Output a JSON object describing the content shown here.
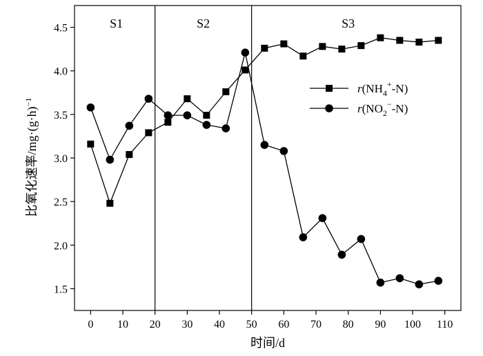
{
  "chart_data": {
    "type": "line",
    "title": "",
    "xlabel": "时间/d",
    "ylabel": "比氧化速率/mg·(g·h)",
    "ylabel_sup": "−1",
    "xlim": [
      -5,
      115
    ],
    "ylim": [
      1.25,
      4.75
    ],
    "xticks": [
      0,
      10,
      20,
      30,
      40,
      50,
      60,
      70,
      80,
      90,
      100,
      110
    ],
    "yticks": [
      1.5,
      2.0,
      2.5,
      3.0,
      3.5,
      4.0,
      4.5
    ],
    "ytick_labels": [
      "1.5",
      "2.0",
      "2.5",
      "3.0",
      "3.5",
      "4.0",
      "4.5"
    ],
    "grid": false,
    "legend_position": "right",
    "phase_boundaries": [
      20,
      50
    ],
    "phases": [
      {
        "label": "S1",
        "x": 8
      },
      {
        "label": "S2",
        "x": 35
      },
      {
        "label": "S3",
        "x": 80
      }
    ],
    "series": [
      {
        "name": "r(NH4+-N)",
        "legend_italic": "r",
        "legend_text": "(NH",
        "legend_sub": "4",
        "legend_sup": "+",
        "legend_tail": "-N)",
        "marker": "square",
        "x": [
          0,
          6,
          12,
          18,
          24,
          30,
          36,
          42,
          48,
          54,
          60,
          66,
          72,
          78,
          84,
          90,
          96,
          102,
          108
        ],
        "values": [
          3.16,
          2.48,
          3.04,
          3.29,
          3.41,
          3.68,
          3.49,
          3.76,
          4.01,
          4.26,
          4.31,
          4.17,
          4.28,
          4.25,
          4.29,
          4.38,
          4.35,
          4.33,
          4.35
        ]
      },
      {
        "name": "r(NO2−-N)",
        "legend_italic": "r",
        "legend_text": "(NO",
        "legend_sub": "2",
        "legend_sup": "−",
        "legend_tail": "-N)",
        "marker": "circle",
        "x": [
          0,
          6,
          12,
          18,
          24,
          30,
          36,
          42,
          48,
          54,
          60,
          66,
          72,
          78,
          84,
          90,
          96,
          102,
          108
        ],
        "values": [
          3.58,
          2.98,
          3.37,
          3.68,
          3.49,
          3.49,
          3.38,
          3.34,
          4.21,
          3.15,
          3.08,
          2.09,
          2.31,
          1.89,
          2.07,
          1.57,
          1.62,
          1.55,
          1.59
        ]
      }
    ]
  }
}
